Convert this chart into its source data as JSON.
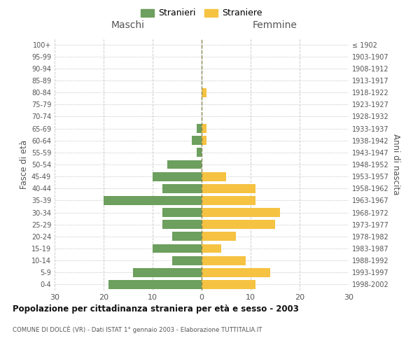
{
  "age_groups": [
    "0-4",
    "5-9",
    "10-14",
    "15-19",
    "20-24",
    "25-29",
    "30-34",
    "35-39",
    "40-44",
    "45-49",
    "50-54",
    "55-59",
    "60-64",
    "65-69",
    "70-74",
    "75-79",
    "80-84",
    "85-89",
    "90-94",
    "95-99",
    "100+"
  ],
  "birth_years": [
    "1998-2002",
    "1993-1997",
    "1988-1992",
    "1983-1987",
    "1978-1982",
    "1973-1977",
    "1968-1972",
    "1963-1967",
    "1958-1962",
    "1953-1957",
    "1948-1952",
    "1943-1947",
    "1938-1942",
    "1933-1937",
    "1928-1932",
    "1923-1927",
    "1918-1922",
    "1913-1917",
    "1908-1912",
    "1903-1907",
    "≤ 1902"
  ],
  "maschi": [
    19,
    14,
    6,
    10,
    6,
    8,
    8,
    20,
    8,
    10,
    7,
    1,
    2,
    1,
    0,
    0,
    0,
    0,
    0,
    0,
    0
  ],
  "femmine": [
    11,
    14,
    9,
    4,
    7,
    15,
    16,
    11,
    11,
    5,
    0,
    0,
    1,
    1,
    0,
    0,
    1,
    0,
    0,
    0,
    0
  ],
  "maschi_color": "#6d9f5e",
  "femmine_color": "#f5c242",
  "title": "Popolazione per cittadinanza straniera per età e sesso - 2003",
  "subtitle": "COMUNE DI DOLCÈ (VR) - Dati ISTAT 1° gennaio 2003 - Elaborazione TUTTITALIA.IT",
  "xlabel_left": "Maschi",
  "xlabel_right": "Femmine",
  "ylabel_left": "Fasce di età",
  "ylabel_right": "Anni di nascita",
  "legend_stranieri": "Stranieri",
  "legend_straniere": "Straniere",
  "xlim": 30,
  "background_color": "#ffffff",
  "grid_color": "#cccccc",
  "text_color": "#555555"
}
